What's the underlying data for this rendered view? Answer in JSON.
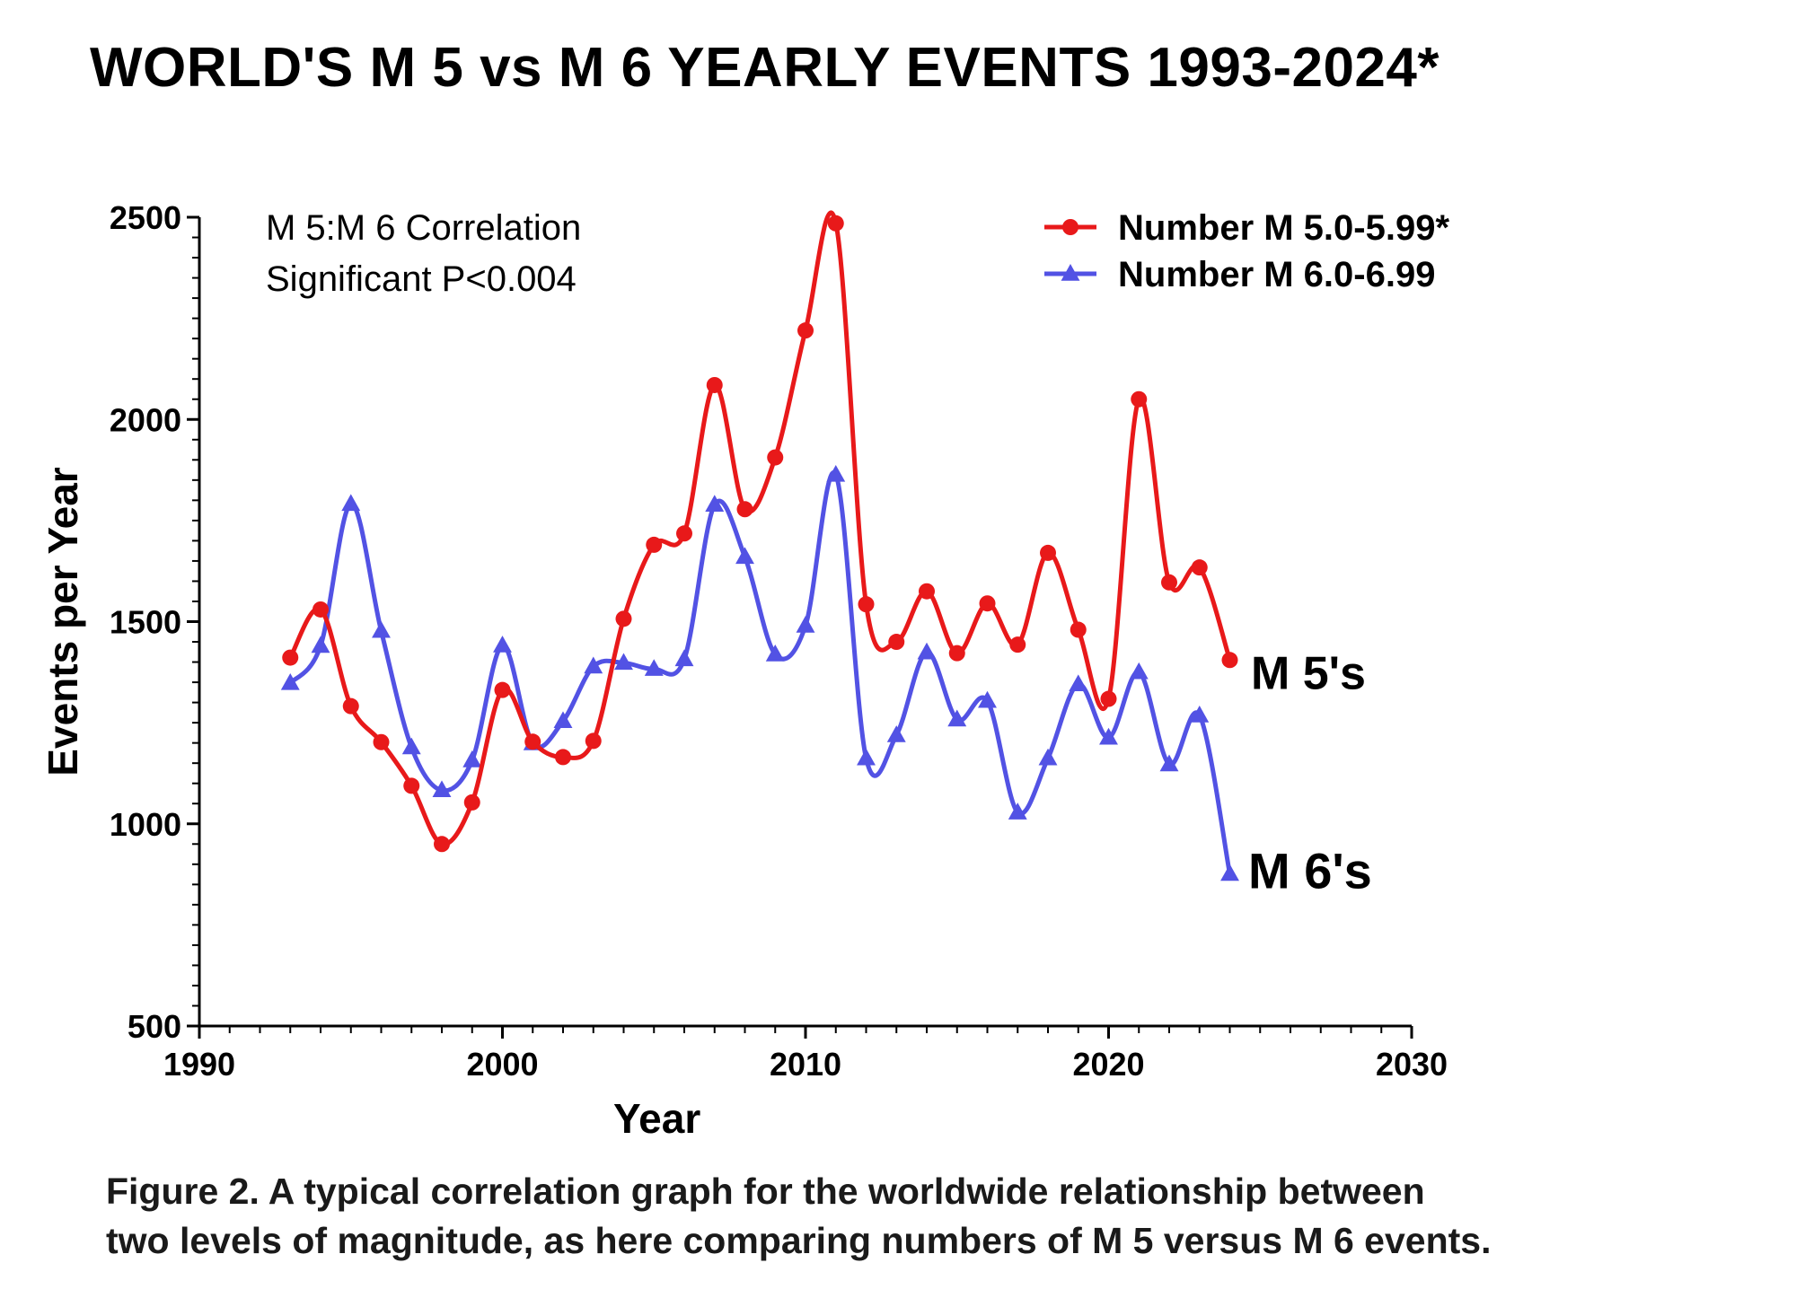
{
  "title": "WORLD'S M 5 vs M 6 YEARLY EVENTS 1993-2024*",
  "caption_line1": "Figure 2. A typical correlation graph for the worldwide relationship between",
  "caption_line2": "two levels of magnitude, as here comparing numbers of M 5 versus M 6 events.",
  "chart_data": {
    "type": "line",
    "xlabel": "Year",
    "ylabel": "Events per Year",
    "xlim": [
      1990,
      2030
    ],
    "ylim": [
      500,
      2500
    ],
    "xticks": [
      "1990",
      "2000",
      "2010",
      "2020",
      "2030"
    ],
    "yticks": [
      "500",
      "1000",
      "1500",
      "2000",
      "2500"
    ],
    "grid": false,
    "legend_position": "top-right",
    "annotation_lines": [
      "M 5:M 6 Correlation",
      "Significant P<0.004"
    ],
    "end_labels": [
      "M 5's",
      "M 6's"
    ],
    "x": [
      1993,
      1994,
      1995,
      1996,
      1997,
      1998,
      1999,
      2000,
      2001,
      2002,
      2003,
      2004,
      2005,
      2006,
      2007,
      2008,
      2009,
      2010,
      2011,
      2012,
      2013,
      2014,
      2015,
      2016,
      2017,
      2018,
      2019,
      2020,
      2021,
      2022,
      2023,
      2024
    ],
    "series": [
      {
        "name": "Number M 5.0-5.99*",
        "color": "#e8191a",
        "marker": "circle",
        "values": [
          1411,
          1530,
          1291,
          1202,
          1094,
          950,
          1053,
          1331,
          1203,
          1165,
          1205,
          1507,
          1690,
          1718,
          2085,
          1778,
          1906,
          2220,
          2485,
          1543,
          1450,
          1575,
          1422,
          1545,
          1443,
          1670,
          1480,
          1309,
          2050,
          1597,
          1634,
          1405
        ]
      },
      {
        "name": "Number M 6.0-6.99",
        "color": "#5252e4",
        "marker": "triangle",
        "values": [
          1348,
          1440,
          1791,
          1477,
          1189,
          1083,
          1157,
          1441,
          1199,
          1254,
          1389,
          1398,
          1383,
          1407,
          1789,
          1660,
          1419,
          1490,
          1863,
          1162,
          1219,
          1424,
          1258,
          1304,
          1028,
          1162,
          1345,
          1213,
          1375,
          1147,
          1268,
          876
        ]
      }
    ]
  }
}
